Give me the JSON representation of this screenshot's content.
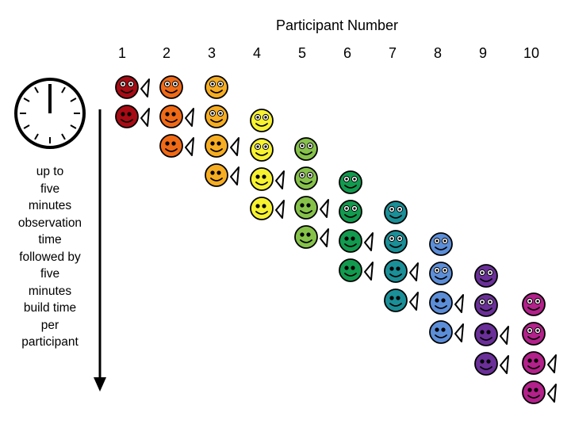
{
  "title": "Participant Number",
  "participants": [
    "1",
    "2",
    "3",
    "4",
    "5",
    "6",
    "7",
    "8",
    "9",
    "10"
  ],
  "description_lines": [
    "up to",
    "five",
    "minutes",
    "observation",
    "time",
    "followed by",
    "five",
    "minutes",
    "build time",
    "per",
    "participant"
  ],
  "icons": {
    "clock": "clock-icon",
    "face": "smiley-face-icon",
    "hand": "pointing-hand-icon"
  },
  "colors": {
    "p1": "#a80b14",
    "p2": "#f06a16",
    "p3": "#f6ad22",
    "p4": "#f6f230",
    "p5": "#86c24a",
    "p6": "#129a4e",
    "p7": "#1a8f97",
    "p8": "#5c8ed8",
    "p9": "#6a2f98",
    "p10": "#b3218a"
  },
  "schedule": [
    {
      "participant": "1",
      "faces": [
        {
          "mode": "observe"
        },
        {
          "mode": "build"
        }
      ]
    },
    {
      "participant": "2",
      "faces": [
        {
          "mode": "observe"
        },
        {
          "mode": "build"
        },
        {
          "mode": "build"
        }
      ]
    },
    {
      "participant": "3",
      "faces": [
        {
          "mode": "observe"
        },
        {
          "mode": "observe"
        },
        {
          "mode": "build"
        },
        {
          "mode": "build"
        }
      ]
    },
    {
      "participant": "4",
      "faces": [
        {
          "mode": "observe"
        },
        {
          "mode": "observe"
        },
        {
          "mode": "build"
        },
        {
          "mode": "build"
        }
      ]
    },
    {
      "participant": "5",
      "faces": [
        {
          "mode": "observe"
        },
        {
          "mode": "observe"
        },
        {
          "mode": "build"
        },
        {
          "mode": "build"
        }
      ]
    },
    {
      "participant": "6",
      "faces": [
        {
          "mode": "observe"
        },
        {
          "mode": "observe"
        },
        {
          "mode": "build"
        },
        {
          "mode": "build"
        }
      ]
    },
    {
      "participant": "7",
      "faces": [
        {
          "mode": "observe"
        },
        {
          "mode": "observe"
        },
        {
          "mode": "build"
        },
        {
          "mode": "build"
        }
      ]
    },
    {
      "participant": "8",
      "faces": [
        {
          "mode": "observe"
        },
        {
          "mode": "observe"
        },
        {
          "mode": "build"
        },
        {
          "mode": "build"
        }
      ]
    },
    {
      "participant": "9",
      "faces": [
        {
          "mode": "observe"
        },
        {
          "mode": "observe"
        },
        {
          "mode": "build"
        },
        {
          "mode": "build"
        }
      ]
    },
    {
      "participant": "10",
      "faces": [
        {
          "mode": "observe"
        },
        {
          "mode": "observe"
        },
        {
          "mode": "build"
        },
        {
          "mode": "build"
        }
      ]
    }
  ]
}
